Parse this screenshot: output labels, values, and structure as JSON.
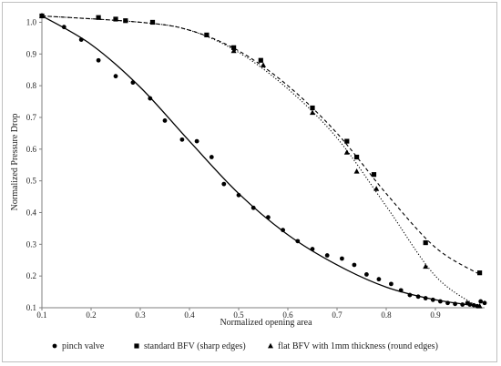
{
  "chart_data": {
    "type": "scatter",
    "title": "",
    "xlabel": "Normalized opening area",
    "ylabel": "Normalized Pressure Drop",
    "xlim": [
      0.1,
      1.0
    ],
    "ylim": [
      0.1,
      1.03
    ],
    "x_ticks": [
      "0.1",
      "0.2",
      "0.3",
      "0.4",
      "0.5",
      "0.6",
      "0.7",
      "0.8",
      "0.9"
    ],
    "y_ticks": [
      "0.1",
      "0.2",
      "0.3",
      "0.4",
      "0.5",
      "0.6",
      "0.7",
      "0.8",
      "0.9",
      "1.0"
    ],
    "grid": "off",
    "legend_position": "bottom",
    "series": [
      {
        "name": "pinch valve",
        "marker": "circle",
        "trend_line": "solid",
        "color": "#000000",
        "points": [
          [
            0.1,
            1.02
          ],
          [
            0.145,
            0.985
          ],
          [
            0.18,
            0.945
          ],
          [
            0.215,
            0.88
          ],
          [
            0.25,
            0.83
          ],
          [
            0.285,
            0.81
          ],
          [
            0.32,
            0.76
          ],
          [
            0.35,
            0.69
          ],
          [
            0.385,
            0.63
          ],
          [
            0.415,
            0.625
          ],
          [
            0.445,
            0.575
          ],
          [
            0.47,
            0.49
          ],
          [
            0.5,
            0.455
          ],
          [
            0.53,
            0.415
          ],
          [
            0.56,
            0.385
          ],
          [
            0.59,
            0.345
          ],
          [
            0.62,
            0.31
          ],
          [
            0.65,
            0.285
          ],
          [
            0.68,
            0.265
          ],
          [
            0.71,
            0.255
          ],
          [
            0.735,
            0.235
          ],
          [
            0.76,
            0.205
          ],
          [
            0.785,
            0.19
          ],
          [
            0.81,
            0.175
          ],
          [
            0.83,
            0.155
          ],
          [
            0.848,
            0.14
          ],
          [
            0.865,
            0.135
          ],
          [
            0.88,
            0.13
          ],
          [
            0.895,
            0.125
          ],
          [
            0.91,
            0.12
          ],
          [
            0.925,
            0.115
          ],
          [
            0.94,
            0.112
          ],
          [
            0.955,
            0.11
          ],
          [
            0.97,
            0.11
          ],
          [
            0.985,
            0.105
          ],
          [
            1.0,
            0.115
          ],
          [
            0.965,
            0.115
          ],
          [
            0.992,
            0.12
          ],
          [
            0.978,
            0.108
          ]
        ],
        "trend": [
          [
            0.1,
            1.02
          ],
          [
            0.2,
            0.93
          ],
          [
            0.3,
            0.795
          ],
          [
            0.4,
            0.625
          ],
          [
            0.5,
            0.46
          ],
          [
            0.6,
            0.33
          ],
          [
            0.7,
            0.235
          ],
          [
            0.8,
            0.165
          ],
          [
            0.9,
            0.125
          ],
          [
            0.99,
            0.105
          ]
        ]
      },
      {
        "name": "standard BFV (sharp edges)",
        "marker": "square",
        "trend_line": "dashed",
        "color": "#000000",
        "points": [
          [
            0.1,
            1.02
          ],
          [
            0.215,
            1.015
          ],
          [
            0.25,
            1.01
          ],
          [
            0.27,
            1.005
          ],
          [
            0.325,
            1.0
          ],
          [
            0.435,
            0.96
          ],
          [
            0.49,
            0.92
          ],
          [
            0.545,
            0.88
          ],
          [
            0.65,
            0.73
          ],
          [
            0.72,
            0.625
          ],
          [
            0.74,
            0.575
          ],
          [
            0.775,
            0.52
          ],
          [
            0.88,
            0.305
          ],
          [
            0.99,
            0.21
          ]
        ],
        "trend": [
          [
            0.1,
            1.02
          ],
          [
            0.3,
            1.0
          ],
          [
            0.4,
            0.975
          ],
          [
            0.5,
            0.91
          ],
          [
            0.6,
            0.8
          ],
          [
            0.7,
            0.65
          ],
          [
            0.8,
            0.46
          ],
          [
            0.9,
            0.29
          ],
          [
            0.99,
            0.205
          ]
        ]
      },
      {
        "name": "flat BFV with 1mm thickness (round edges)",
        "marker": "triangle",
        "trend_line": "dotted",
        "color": "#000000",
        "points": [
          [
            0.1,
            1.02
          ],
          [
            0.49,
            0.91
          ],
          [
            0.55,
            0.865
          ],
          [
            0.65,
            0.715
          ],
          [
            0.72,
            0.59
          ],
          [
            0.74,
            0.53
          ],
          [
            0.78,
            0.475
          ],
          [
            0.88,
            0.23
          ],
          [
            0.99,
            0.105
          ]
        ],
        "trend": [
          [
            0.1,
            1.02
          ],
          [
            0.3,
            1.0
          ],
          [
            0.4,
            0.975
          ],
          [
            0.5,
            0.905
          ],
          [
            0.6,
            0.79
          ],
          [
            0.7,
            0.635
          ],
          [
            0.8,
            0.42
          ],
          [
            0.9,
            0.2
          ],
          [
            0.99,
            0.1
          ]
        ]
      }
    ]
  }
}
